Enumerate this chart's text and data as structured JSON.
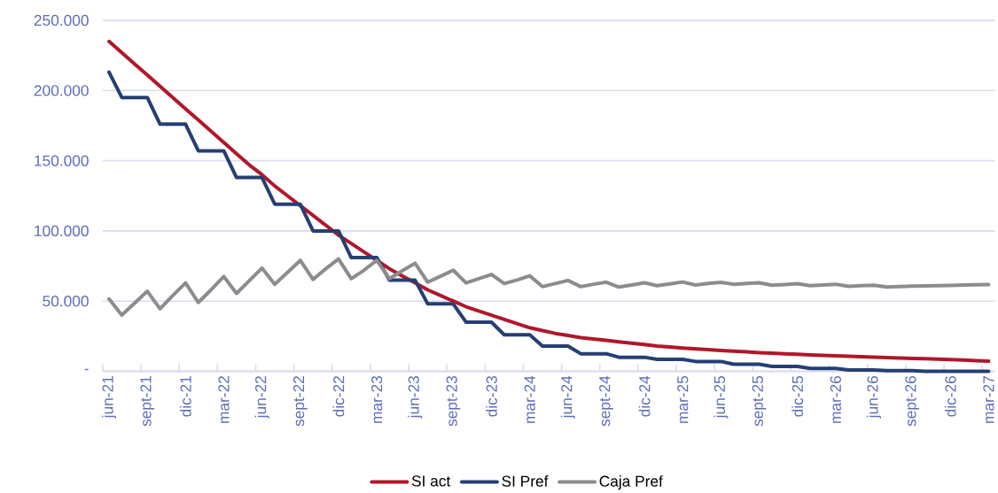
{
  "chart_data": {
    "type": "line",
    "categories": [
      "jun-21",
      null,
      null,
      "sept-21",
      null,
      null,
      "dic-21",
      null,
      null,
      "mar-22",
      null,
      null,
      "jun-22",
      null,
      null,
      "sept-22",
      null,
      null,
      "dic-22",
      null,
      null,
      "mar-23",
      null,
      null,
      "jun-23",
      null,
      null,
      "sept-23",
      null,
      null,
      "dic-23",
      null,
      null,
      "mar-24",
      null,
      null,
      "jun-24",
      null,
      null,
      "sept-24",
      null,
      null,
      "dic-24",
      null,
      null,
      "mar-25",
      null,
      null,
      "jun-25",
      null,
      null,
      "sept-25",
      null,
      null,
      "dic-25",
      null,
      null,
      "mar-26",
      null,
      null,
      "jun-26",
      null,
      null,
      "sept-26",
      null,
      null,
      "dic-26",
      null,
      null,
      "mar-27"
    ],
    "series": [
      {
        "name": "SI act",
        "color": "#b0172a",
        "values": [
          235000,
          227000,
          219000,
          211000,
          203000,
          195000,
          187000,
          179000,
          171000,
          163000,
          155000,
          147000,
          140000,
          132000,
          125000,
          118000,
          111000,
          104000,
          97000,
          91000,
          85000,
          79000,
          73000,
          68000,
          63000,
          58000,
          54000,
          50000,
          46000,
          43000,
          40000,
          37000,
          34000,
          31000,
          29000,
          27000,
          25500,
          24000,
          23000,
          22000,
          21000,
          20000,
          19000,
          18000,
          17300,
          16600,
          16000,
          15400,
          14800,
          14300,
          13800,
          13300,
          12900,
          12500,
          12100,
          11700,
          11400,
          11000,
          10700,
          10400,
          10100,
          9800,
          9500,
          9200,
          8900,
          8600,
          8300,
          8000,
          7600,
          7200
        ]
      },
      {
        "name": "SI Pref",
        "color": "#243f73",
        "values": [
          213000,
          195000,
          195000,
          195000,
          176000,
          176000,
          176000,
          157000,
          157000,
          157000,
          138000,
          138000,
          138000,
          119000,
          119000,
          119000,
          100000,
          100000,
          100000,
          81000,
          81000,
          81000,
          65000,
          65000,
          65000,
          48000,
          48000,
          48000,
          35000,
          35000,
          35000,
          26000,
          26000,
          26000,
          18000,
          18000,
          18000,
          12500,
          12500,
          12500,
          10000,
          10000,
          10000,
          8500,
          8500,
          8500,
          7000,
          7000,
          7000,
          5000,
          5000,
          5000,
          3500,
          3500,
          3500,
          2000,
          2000,
          2000,
          1000,
          1000,
          1000,
          500,
          500,
          500,
          0,
          0,
          0,
          0,
          0,
          0
        ]
      },
      {
        "name": "Caja Pref",
        "color": "#8c8c8c",
        "values": [
          51500,
          40000,
          48500,
          57000,
          44500,
          54000,
          63000,
          49000,
          58000,
          67500,
          55500,
          64500,
          73500,
          62000,
          70500,
          79000,
          65500,
          73000,
          80000,
          66000,
          72000,
          79000,
          66000,
          71500,
          77000,
          63500,
          67700,
          72000,
          63000,
          66000,
          69000,
          62500,
          65000,
          68000,
          60300,
          62500,
          64700,
          60300,
          62000,
          63500,
          60000,
          61500,
          63000,
          61000,
          62300,
          63600,
          61500,
          62500,
          63400,
          62000,
          62500,
          63000,
          61300,
          61800,
          62400,
          61000,
          61500,
          62000,
          60500,
          61000,
          61300,
          60000,
          60300,
          60600,
          60800,
          61000,
          61200,
          61400,
          61600,
          61800
        ]
      }
    ],
    "ylim": [
      0,
      250000
    ],
    "yticks": [
      {
        "value": 0,
        "label": "-"
      },
      {
        "value": 50000,
        "label": "50.000"
      },
      {
        "value": 100000,
        "label": "100.000"
      },
      {
        "value": 150000,
        "label": "150.000"
      },
      {
        "value": 200000,
        "label": "200.000"
      },
      {
        "value": 250000,
        "label": "250.000"
      }
    ],
    "grid": "y",
    "legend": "bottom",
    "marker": "none",
    "line_style": "solid"
  }
}
